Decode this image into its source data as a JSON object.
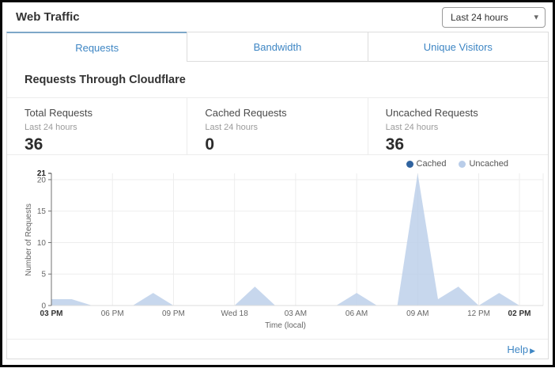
{
  "header": {
    "title": "Web Traffic",
    "time_range": {
      "value": "Last 24 hours"
    }
  },
  "icons": {
    "dropdown_caret": "▾",
    "help_arrow": "▶"
  },
  "tabs": [
    {
      "label": "Requests",
      "active": true
    },
    {
      "label": "Bandwidth",
      "active": false
    },
    {
      "label": "Unique Visitors",
      "active": false
    }
  ],
  "section_title": "Requests Through Cloudflare",
  "stats": [
    {
      "label": "Total Requests",
      "period": "Last 24 hours",
      "value": "36"
    },
    {
      "label": "Cached Requests",
      "period": "Last 24 hours",
      "value": "0"
    },
    {
      "label": "Uncached Requests",
      "period": "Last 24 hours",
      "value": "36"
    }
  ],
  "footer": {
    "help": "Help"
  },
  "colors": {
    "accent_blue": "#3e86c4",
    "active_tab_indicator": "#7da7c8",
    "cached": "#30639f",
    "uncached": "#b9cde9"
  },
  "chart_data": {
    "type": "area",
    "title": "",
    "xlabel": "Time (local)",
    "ylabel": "Number of Requests",
    "ylim": [
      0,
      21
    ],
    "yticks": [
      0,
      5,
      10,
      15,
      20
    ],
    "ymax_label": "21",
    "grid": true,
    "legend_position": "top-right",
    "categories": [
      "03 PM",
      "04 PM",
      "05 PM",
      "06 PM",
      "07 PM",
      "08 PM",
      "09 PM",
      "10 PM",
      "11 PM",
      "12 AM",
      "01 AM",
      "02 AM",
      "03 AM",
      "04 AM",
      "05 AM",
      "06 AM",
      "07 AM",
      "08 AM",
      "09 AM",
      "10 AM",
      "11 AM",
      "12 PM",
      "01 PM",
      "02 PM"
    ],
    "x_ticks": [
      {
        "index": 0,
        "label": "03 PM",
        "bold": true
      },
      {
        "index": 3,
        "label": "06 PM",
        "bold": false
      },
      {
        "index": 6,
        "label": "09 PM",
        "bold": false
      },
      {
        "index": 9,
        "label": "Wed 18",
        "bold": false
      },
      {
        "index": 12,
        "label": "03 AM",
        "bold": false
      },
      {
        "index": 15,
        "label": "06 AM",
        "bold": false
      },
      {
        "index": 18,
        "label": "09 AM",
        "bold": false
      },
      {
        "index": 21,
        "label": "12 PM",
        "bold": false
      },
      {
        "index": 23,
        "label": "02 PM",
        "bold": true
      }
    ],
    "series": [
      {
        "name": "Cached",
        "color": "#30639f",
        "total": 0,
        "values": [
          0,
          0,
          0,
          0,
          0,
          0,
          0,
          0,
          0,
          0,
          0,
          0,
          0,
          0,
          0,
          0,
          0,
          0,
          0,
          0,
          0,
          0,
          0,
          0
        ]
      },
      {
        "name": "Uncached",
        "color": "#b9cde9",
        "total": 36,
        "values": [
          1,
          1,
          0,
          0,
          0,
          2,
          0,
          0,
          0,
          0,
          3,
          0,
          0,
          0,
          0,
          2,
          0,
          0,
          21,
          1,
          3,
          0,
          2,
          0
        ]
      }
    ]
  }
}
